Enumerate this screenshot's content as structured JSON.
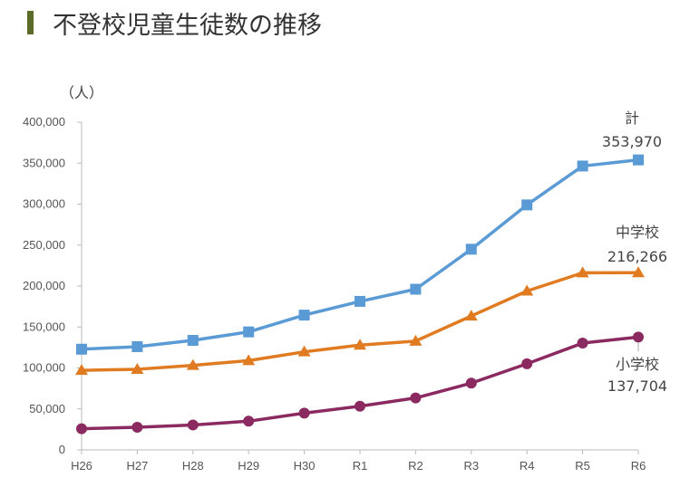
{
  "header": {
    "title": "不登校児童生徒数の推移",
    "accent": "#5a6b2a"
  },
  "chart_data": {
    "type": "line",
    "title": "不登校児童生徒数の推移",
    "ylabel": "（人）",
    "xlabel": "",
    "categories": [
      "H26",
      "H27",
      "H28",
      "H29",
      "H30",
      "R1",
      "R2",
      "R3",
      "R4",
      "R5",
      "R6"
    ],
    "ylim": [
      0,
      400000
    ],
    "yticks": [
      0,
      50000,
      100000,
      150000,
      200000,
      250000,
      300000,
      350000,
      400000
    ],
    "ytick_labels": [
      "0",
      "50,000",
      "100,000",
      "150,000",
      "200,000",
      "250,000",
      "300,000",
      "350,000",
      "400,000"
    ],
    "grid": false,
    "series": [
      {
        "name": "計",
        "end_label": "353,970",
        "color": "#5b9bd5",
        "marker": "square",
        "values": [
          122902,
          125991,
          133683,
          144031,
          164528,
          181272,
          196127,
          244940,
          299048,
          346482,
          353970
        ]
      },
      {
        "name": "中学校",
        "end_label": "216,266",
        "color": "#e07b22",
        "marker": "triangle",
        "values": [
          97033,
          98408,
          103235,
          108999,
          119687,
          127922,
          132777,
          163442,
          193936,
          216112,
          216266
        ]
      },
      {
        "name": "小学校",
        "end_label": "137,704",
        "color": "#8b2a60",
        "marker": "circle",
        "values": [
          25864,
          27583,
          30448,
          35032,
          44841,
          53350,
          63350,
          81498,
          105112,
          130370,
          137704
        ]
      }
    ]
  }
}
